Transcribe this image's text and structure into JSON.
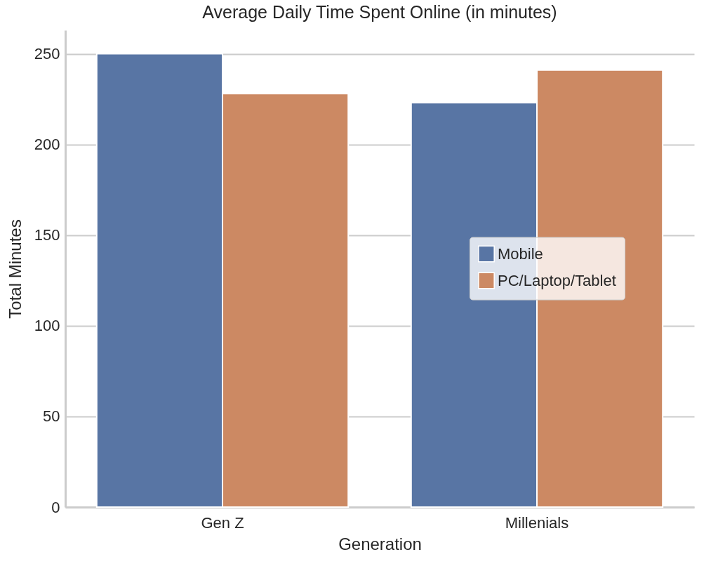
{
  "chart_data": {
    "type": "bar",
    "title": "Average Daily Time Spent Online (in minutes)",
    "xlabel": "Generation",
    "ylabel": "Total Minutes",
    "categories": [
      "Gen Z",
      "Millenials"
    ],
    "series": [
      {
        "name": "Mobile",
        "color": "#5875a4",
        "values": [
          250,
          223
        ]
      },
      {
        "name": "PC/Laptop/Tablet",
        "color": "#cc8963",
        "values": [
          228,
          241
        ]
      }
    ],
    "ylim": [
      0,
      263
    ],
    "yticks": [
      0,
      50,
      100,
      150,
      200,
      250
    ],
    "grid": "y",
    "legend": "right"
  }
}
